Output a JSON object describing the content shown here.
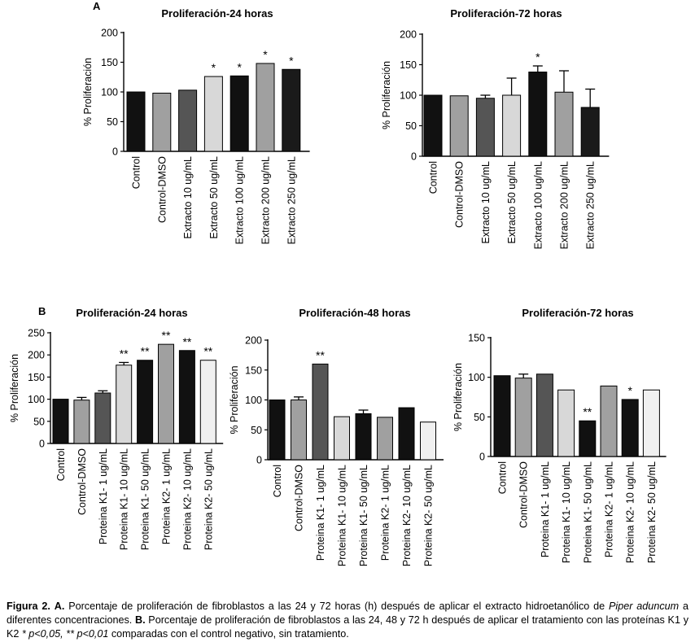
{
  "panels": {
    "a": "A",
    "b": "B"
  },
  "chart_data": [
    {
      "type": "bar",
      "title": "Proliferación-24 horas",
      "ylabel": "% Proliferación",
      "xlabel": "",
      "ylim": [
        0,
        200
      ],
      "yticks": [
        0,
        50,
        100,
        150,
        200
      ],
      "categories": [
        "Control",
        "Control-DMSO",
        "Extracto 10 ug/mL",
        "Extracto 50 ug/mL",
        "Extracto 100 ug/mL",
        "Extracto 200 ug/mL",
        "Extracto 250 ug/mL"
      ],
      "values": [
        100,
        98,
        103,
        126,
        127,
        148,
        138
      ],
      "errors": [
        0,
        0,
        0,
        0,
        0,
        0,
        0
      ],
      "significance": [
        "",
        "",
        "",
        "*",
        "*",
        "*",
        "*"
      ],
      "colors": [
        "#111111",
        "#a0a0a0",
        "#555555",
        "#d8d8d8",
        "#111111",
        "#a0a0a0",
        "#1a1a1a"
      ]
    },
    {
      "type": "bar",
      "title": "Proliferación-72 horas",
      "ylabel": "% Proliferación",
      "xlabel": "",
      "ylim": [
        0,
        200
      ],
      "yticks": [
        0,
        50,
        100,
        150,
        200
      ],
      "categories": [
        "Control",
        "Control-DMSO",
        "Extracto 10 ug/mL",
        "Extracto 50 ug/mL",
        "Extracto 100 ug/mL",
        "Extracto 200 ug/mL",
        "Extracto 250 ug/mL"
      ],
      "values": [
        100,
        99,
        95,
        100,
        138,
        105,
        80
      ],
      "errors": [
        0,
        0,
        5,
        28,
        10,
        35,
        30
      ],
      "significance": [
        "",
        "",
        "",
        "",
        "*",
        "",
        ""
      ],
      "colors": [
        "#111111",
        "#a0a0a0",
        "#555555",
        "#d8d8d8",
        "#111111",
        "#a0a0a0",
        "#1a1a1a"
      ]
    },
    {
      "type": "bar",
      "title": "Proliferación-24 horas",
      "ylabel": "% Proliferación",
      "xlabel": "",
      "ylim": [
        0,
        250
      ],
      "yticks": [
        0,
        50,
        100,
        150,
        200,
        250
      ],
      "categories": [
        "Control",
        "Control-DMSO",
        "Proteina K1- 1 ug/mL",
        "Proteina K1- 10 ug/mL",
        "Proteina K1- 50 ug/mL",
        "Proteina K2- 1 ug/mL",
        "Proteina K2- 10 ug/mL",
        "Proteina K2- 50 ug/mL"
      ],
      "values": [
        100,
        98,
        114,
        177,
        188,
        224,
        210,
        188
      ],
      "errors": [
        0,
        6,
        5,
        6,
        0,
        0,
        0,
        0
      ],
      "significance": [
        "",
        "",
        "",
        "**",
        "**",
        "**",
        "**",
        "**"
      ],
      "colors": [
        "#111111",
        "#a0a0a0",
        "#555555",
        "#d8d8d8",
        "#111111",
        "#a0a0a0",
        "#111111",
        "#f0f0f0"
      ]
    },
    {
      "type": "bar",
      "title": "Proliferación-48 horas",
      "ylabel": "% Proliferación",
      "xlabel": "",
      "ylim": [
        0,
        200
      ],
      "yticks": [
        0,
        50,
        100,
        150,
        200
      ],
      "categories": [
        "Control",
        "Control-DMSO",
        "Proteina K1- 1 ug/mL",
        "Proteina K1- 10 ug/mL",
        "Proteina K1- 50 ug/mL",
        "Proteina K2- 1 ug/mL",
        "Proteina K2- 10 ug/mL",
        "Proteina K2- 50 ug/mL"
      ],
      "values": [
        100,
        100,
        160,
        72,
        77,
        71,
        87,
        63
      ],
      "errors": [
        0,
        5,
        0,
        0,
        6,
        0,
        0,
        0
      ],
      "significance": [
        "",
        "",
        "**",
        "",
        "",
        "",
        "",
        ""
      ],
      "colors": [
        "#111111",
        "#a0a0a0",
        "#555555",
        "#d8d8d8",
        "#111111",
        "#a0a0a0",
        "#111111",
        "#f0f0f0"
      ]
    },
    {
      "type": "bar",
      "title": "Proliferación-72 horas",
      "ylabel": "% Proliferación",
      "xlabel": "",
      "ylim": [
        0,
        150
      ],
      "yticks": [
        0,
        50,
        100,
        150
      ],
      "categories": [
        "Control",
        "Control-DMSO",
        "Proteina K1- 1 ug/mL",
        "Proteina K1- 10 ug/mL",
        "Proteina K1- 50 ug/mL",
        "Proteina K2- 1 ug/mL",
        "Proteina K2- 10 ug/mL",
        "Proteina K2- 50 ug/mL"
      ],
      "values": [
        102,
        99,
        104,
        84,
        45,
        89,
        72,
        84
      ],
      "errors": [
        0,
        5,
        0,
        0,
        0,
        0,
        0,
        0
      ],
      "significance": [
        "",
        "",
        "",
        "",
        "**",
        "",
        "*",
        ""
      ],
      "colors": [
        "#111111",
        "#a0a0a0",
        "#555555",
        "#d8d8d8",
        "#111111",
        "#a0a0a0",
        "#111111",
        "#f0f0f0"
      ]
    }
  ],
  "caption": {
    "figure_label": "Figura 2.",
    "part_a_label": "A.",
    "part_a_text": " Porcentaje de proliferación de fibroblastos a las 24 y 72 horas (h) después de aplicar el extracto hidroetanólico de ",
    "species": "Piper aduncum",
    "part_a_end": " a diferentes concentraciones.",
    "part_b_label": " B.",
    "part_b_text": " Porcentaje de proliferación de fibroblastos a las 24, 48 y 72 h después de aplicar el tratamiento con las proteínas K1 y K2 ",
    "p1": "* p<0,05, ** p<0,01",
    "part_b_end": " comparadas con el control negativo, sin tratamiento."
  }
}
